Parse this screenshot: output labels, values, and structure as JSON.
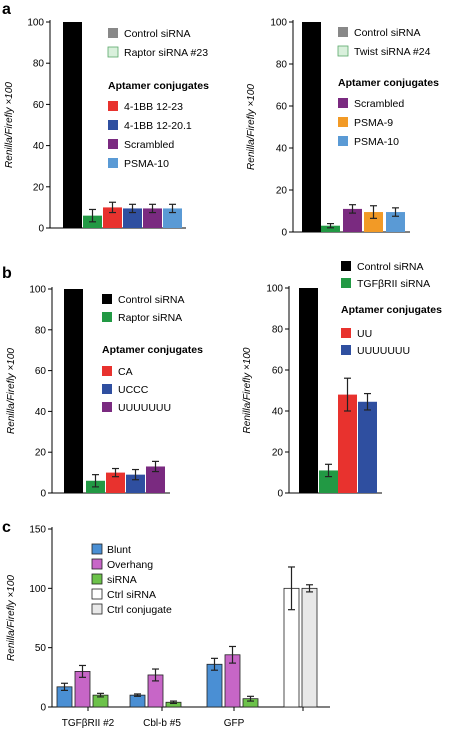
{
  "chart_data": [
    {
      "panel": "a",
      "type": "bar",
      "ylabel": "Renilla/Firefly ×100",
      "ylim": [
        0,
        100
      ],
      "yticks": [
        0,
        20,
        40,
        60,
        80,
        100
      ],
      "series": [
        {
          "name": "Control siRNA",
          "color": "#000000",
          "value": 100,
          "error": 0
        },
        {
          "name": "Raptor siRNA #23",
          "color": "#229944",
          "value": 6,
          "error": 3
        },
        {
          "name": "4-1BB 12-23",
          "color": "#e8322e",
          "value": 10,
          "error": 2.5
        },
        {
          "name": "4-1BB 12-20.1",
          "color": "#2f4fa0",
          "value": 9.5,
          "error": 2
        },
        {
          "name": "Scrambled",
          "color": "#7a2a80",
          "value": 9.5,
          "error": 2
        },
        {
          "name": "PSMA-10",
          "color": "#5a9ad5",
          "value": 9.5,
          "error": 2
        }
      ],
      "legend": [
        {
          "label": "Control siRNA",
          "color": "#888888"
        },
        {
          "label": "Raptor siRNA #23",
          "color": "#d9f0dc"
        }
      ],
      "legend_heading": "Aptamer conjugates",
      "legend_conj": [
        {
          "label": "4-1BB 12-23",
          "color": "#e8322e"
        },
        {
          "label": "4-1BB 12-20.1",
          "color": "#2f4fa0"
        },
        {
          "label": "Scrambled",
          "color": "#7a2a80"
        },
        {
          "label": "PSMA-10",
          "color": "#5a9ad5"
        }
      ]
    },
    {
      "panel": "a-right",
      "type": "bar",
      "ylabel": "Renilla/Firefly ×100",
      "ylim": [
        0,
        100
      ],
      "yticks": [
        0,
        20,
        40,
        60,
        80,
        100
      ],
      "series": [
        {
          "name": "Control siRNA",
          "color": "#000000",
          "value": 100,
          "error": 0
        },
        {
          "name": "Twist siRNA #24",
          "color": "#229944",
          "value": 3,
          "error": 1
        },
        {
          "name": "Scrambled",
          "color": "#7a2a80",
          "value": 11,
          "error": 2
        },
        {
          "name": "PSMA-9",
          "color": "#f29a26",
          "value": 9.5,
          "error": 3
        },
        {
          "name": "PSMA-10",
          "color": "#5a9ad5",
          "value": 9.5,
          "error": 2
        }
      ],
      "legend": [
        {
          "label": "Control siRNA",
          "color": "#888888"
        },
        {
          "label": "Twist siRNA #24",
          "color": "#d9f0dc"
        }
      ],
      "legend_heading": "Aptamer conjugates",
      "legend_conj": [
        {
          "label": "Scrambled",
          "color": "#7a2a80"
        },
        {
          "label": "PSMA-9",
          "color": "#f29a26"
        },
        {
          "label": "PSMA-10",
          "color": "#5a9ad5"
        }
      ]
    },
    {
      "panel": "b",
      "type": "bar",
      "ylabel": "Renilla/Firefly ×100",
      "ylim": [
        0,
        100
      ],
      "yticks": [
        0,
        20,
        40,
        60,
        80,
        100
      ],
      "series": [
        {
          "name": "Control siRNA",
          "color": "#000000",
          "value": 100,
          "error": 0
        },
        {
          "name": "Raptor siRNA",
          "color": "#229944",
          "value": 6,
          "error": 3
        },
        {
          "name": "CA",
          "color": "#e8322e",
          "value": 10,
          "error": 2
        },
        {
          "name": "UCCC",
          "color": "#2f4fa0",
          "value": 9,
          "error": 2.5
        },
        {
          "name": "UUUUUUU",
          "color": "#7a2a80",
          "value": 13,
          "error": 2.5
        }
      ],
      "legend": [
        {
          "label": "Control siRNA",
          "color": "#000000"
        },
        {
          "label": "Raptor siRNA",
          "color": "#229944"
        }
      ],
      "legend_heading": "Aptamer conjugates",
      "legend_conj": [
        {
          "label": "CA",
          "color": "#e8322e"
        },
        {
          "label": "UCCC",
          "color": "#2f4fa0"
        },
        {
          "label": "UUUUUUU",
          "color": "#7a2a80"
        }
      ]
    },
    {
      "panel": "b-right",
      "type": "bar",
      "ylabel": "Renilla/Firefly ×100",
      "ylim": [
        0,
        100
      ],
      "yticks": [
        0,
        20,
        40,
        60,
        80,
        100
      ],
      "series": [
        {
          "name": "Control siRNA",
          "color": "#000000",
          "value": 100,
          "error": 0
        },
        {
          "name": "TGFβRII siRNA",
          "color": "#229944",
          "value": 11,
          "error": 3
        },
        {
          "name": "UU",
          "color": "#e8322e",
          "value": 48,
          "error": 8
        },
        {
          "name": "UUUUUUU",
          "color": "#2f4fa0",
          "value": 44.5,
          "error": 4
        }
      ],
      "legend": [
        {
          "label": "Control siRNA",
          "color": "#000000"
        },
        {
          "label": "TGFβRII siRNA",
          "color": "#229944"
        }
      ],
      "legend_heading": "Aptamer conjugates",
      "legend_conj": [
        {
          "label": "UU",
          "color": "#e8322e"
        },
        {
          "label": "UUUUUUU",
          "color": "#2f4fa0"
        }
      ]
    },
    {
      "panel": "c",
      "type": "bar",
      "ylabel": "Renilla/Firefly ×100",
      "ylim": [
        0,
        150
      ],
      "yticks": [
        0,
        50,
        100,
        150
      ],
      "categories": [
        "TGFβRII #2",
        "Cbl-b #5",
        "GFP",
        ""
      ],
      "groups": [
        {
          "category": "TGFβRII #2",
          "bars": [
            {
              "series": "Blunt",
              "value": 17,
              "error": 3
            },
            {
              "series": "Overhang",
              "value": 30,
              "error": 5
            },
            {
              "series": "siRNA",
              "value": 10,
              "error": 1.5
            }
          ]
        },
        {
          "category": "Cbl-b #5",
          "bars": [
            {
              "series": "Blunt",
              "value": 10,
              "error": 1
            },
            {
              "series": "Overhang",
              "value": 27,
              "error": 5
            },
            {
              "series": "siRNA",
              "value": 4,
              "error": 1
            }
          ]
        },
        {
          "category": "GFP",
          "bars": [
            {
              "series": "Blunt",
              "value": 36,
              "error": 5
            },
            {
              "series": "Overhang",
              "value": 44,
              "error": 7
            },
            {
              "series": "siRNA",
              "value": 7,
              "error": 2
            }
          ]
        },
        {
          "category": "",
          "bars": [
            {
              "series": "Ctrl siRNA",
              "value": 100,
              "error": 18
            },
            {
              "series": "Ctrl conjugate",
              "value": 100,
              "error": 3
            }
          ]
        }
      ],
      "legend": [
        {
          "label": "Blunt",
          "color": "#4a8fd4"
        },
        {
          "label": "Overhang",
          "color": "#c766c7"
        },
        {
          "label": "siRNA",
          "color": "#6cc24a"
        },
        {
          "label": "Ctrl siRNA",
          "color": "#ffffff"
        },
        {
          "label": "Ctrl conjugate",
          "color": "#e8e8e8"
        }
      ]
    }
  ],
  "panel_labels": [
    "a",
    "b",
    "c"
  ]
}
